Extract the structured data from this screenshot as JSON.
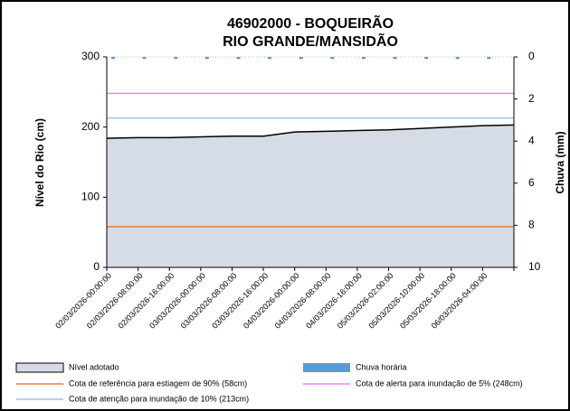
{
  "chart_data": {
    "type": "area",
    "title": [
      "46902000 - BOQUEIRÃO",
      "RIO GRANDE/MANSIDÃO"
    ],
    "y_label": "Nível do Rio (cm)",
    "y2_label": "Chuva (mm)",
    "categories": [
      "02/03/2026-00:00:00",
      "02/03/2026-08:00:00",
      "02/03/2026-16:00:00",
      "03/03/2026-00:00:00",
      "03/03/2026-08:00:00",
      "03/03/2026-16:00:00",
      "04/03/2026-00:00:00",
      "04/03/2026-08:00:00",
      "04/03/2026-16:00:00",
      "05/03/2026-02:00:00",
      "05/03/2026-10:00:00",
      "05/03/2026-18:00:00",
      "06/03/2026-04:00:00",
      null
    ],
    "series": [
      {
        "name": "Nível adotado",
        "color": "#d6dce5",
        "values": [
          184,
          185,
          185,
          186,
          187,
          187,
          193,
          194,
          195,
          196,
          198,
          200,
          202,
          203
        ]
      },
      {
        "name": "Chuva horária",
        "color": "#5b9bd5",
        "axis": "y2",
        "values": [
          0.1,
          0.1,
          0.1,
          0.1,
          0.1,
          0.1,
          0.1,
          0.1,
          0.1,
          0.1,
          0.1,
          0.1,
          0.1,
          null
        ]
      }
    ],
    "reference_lines": [
      {
        "name": "Cota de referência para estiagem de 90% (58cm)",
        "color": "#ed7d31",
        "value": 58
      },
      {
        "name": "Cota de alerta para inundação de 5% (248cm)",
        "color": "#ee82ee",
        "value": 248
      },
      {
        "name": "Cota de atenção para inundação de 10% (213cm)",
        "color": "#9dc3e6",
        "value": 213
      }
    ],
    "ylim": [
      0,
      300
    ],
    "yticks": [
      0,
      100,
      200,
      300
    ],
    "y2lim": [
      0,
      10
    ],
    "y2ticks": [
      0,
      2,
      4,
      6,
      8,
      10
    ],
    "y2_inverted": true
  }
}
